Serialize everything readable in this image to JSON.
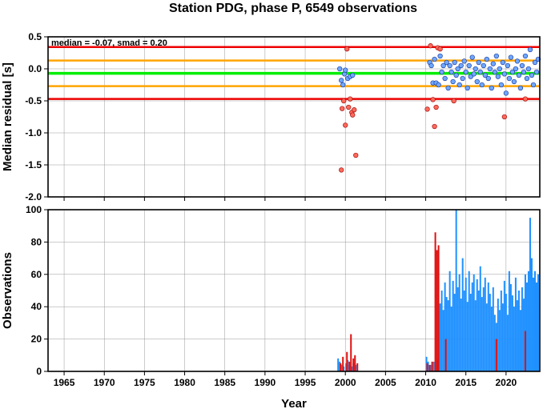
{
  "title": "Station PDG, phase P, 6549 observations",
  "annotation": "median = -0.07, smad = 0.20",
  "xlabel": "Year",
  "colors": {
    "median_line": "#00ee00",
    "one_smad": "#ffa500",
    "two_smad": "#ee0000",
    "good_point_fill": "#6fa8ff",
    "good_point_edge": "#1f3f9f",
    "outlier_fill": "#ff6a5a",
    "outlier_edge": "#a01010",
    "good_bar": "#1e90ff",
    "outlier_bar": "#e01010",
    "grid": "#999999"
  },
  "chart_data": [
    {
      "type": "scatter",
      "ylabel": "Median residual [s]",
      "xlim": [
        1963,
        2024.2
      ],
      "ylim": [
        -2.0,
        0.5
      ],
      "x_ticks": [
        1965,
        1970,
        1975,
        1980,
        1985,
        1990,
        1995,
        2000,
        2005,
        2010,
        2015,
        2020
      ],
      "y_ticks": [
        0.5,
        0.0,
        -0.5,
        -1.0,
        -1.5,
        -2.0
      ],
      "y_tick_labels": [
        "0.5",
        "0.0",
        "-0.5",
        "-1.0",
        "-1.5",
        "-2.0"
      ],
      "grid": true,
      "reference_lines": [
        {
          "name": "median",
          "y": -0.07
        },
        {
          "name": "+1 smad",
          "y": 0.13
        },
        {
          "name": "-1 smad",
          "y": -0.27
        },
        {
          "name": "+2 smad",
          "y": 0.34
        },
        {
          "name": "-2 smad",
          "y": -0.47
        }
      ],
      "series": [
        {
          "kind": "within_limits",
          "points": [
            [
              1999.3,
              0.0
            ],
            [
              1999.5,
              -0.18
            ],
            [
              1999.7,
              -0.25
            ],
            [
              1999.9,
              -0.08
            ],
            [
              2000.0,
              -0.02
            ],
            [
              2000.3,
              -0.15
            ],
            [
              2000.6,
              -0.12
            ],
            [
              2000.9,
              -0.1
            ],
            [
              2010.5,
              0.1
            ],
            [
              2010.7,
              0.05
            ],
            [
              2010.9,
              -0.22
            ],
            [
              2011.1,
              0.15
            ],
            [
              2011.3,
              -0.22
            ],
            [
              2011.6,
              -0.25
            ],
            [
              2011.8,
              0.2
            ],
            [
              2012.0,
              -0.05
            ],
            [
              2012.2,
              0.05
            ],
            [
              2012.4,
              -0.15
            ],
            [
              2012.6,
              0.1
            ],
            [
              2012.8,
              -0.3
            ],
            [
              2013.0,
              0.05
            ],
            [
              2013.2,
              -0.05
            ],
            [
              2013.4,
              -0.2
            ],
            [
              2013.6,
              0.1
            ],
            [
              2013.8,
              -0.1
            ],
            [
              2014.0,
              0.0
            ],
            [
              2014.2,
              -0.25
            ],
            [
              2014.4,
              0.05
            ],
            [
              2014.6,
              -0.15
            ],
            [
              2014.8,
              0.12
            ],
            [
              2015.0,
              -0.05
            ],
            [
              2015.2,
              -0.3
            ],
            [
              2015.4,
              0.05
            ],
            [
              2015.6,
              -0.12
            ],
            [
              2015.8,
              0.18
            ],
            [
              2016.0,
              -0.08
            ],
            [
              2016.2,
              0.0
            ],
            [
              2016.4,
              -0.2
            ],
            [
              2016.6,
              0.1
            ],
            [
              2016.8,
              -0.05
            ],
            [
              2017.0,
              -0.25
            ],
            [
              2017.2,
              0.05
            ],
            [
              2017.4,
              -0.1
            ],
            [
              2017.6,
              0.15
            ],
            [
              2017.8,
              -0.15
            ],
            [
              2018.0,
              0.0
            ],
            [
              2018.2,
              -0.3
            ],
            [
              2018.4,
              0.08
            ],
            [
              2018.6,
              -0.05
            ],
            [
              2018.8,
              0.2
            ],
            [
              2019.0,
              -0.12
            ],
            [
              2019.2,
              0.0
            ],
            [
              2019.4,
              -0.25
            ],
            [
              2019.6,
              0.1
            ],
            [
              2019.8,
              -0.08
            ],
            [
              2020.0,
              -0.38
            ],
            [
              2020.2,
              0.05
            ],
            [
              2020.4,
              -0.15
            ],
            [
              2020.6,
              0.18
            ],
            [
              2020.8,
              -0.05
            ],
            [
              2021.0,
              -0.2
            ],
            [
              2021.2,
              0.0
            ],
            [
              2021.4,
              0.12
            ],
            [
              2021.6,
              -0.1
            ],
            [
              2021.8,
              -0.3
            ],
            [
              2022.0,
              0.05
            ],
            [
              2022.2,
              -0.05
            ],
            [
              2022.4,
              0.2
            ],
            [
              2022.6,
              -0.15
            ],
            [
              2022.8,
              0.0
            ],
            [
              2023.0,
              0.3
            ],
            [
              2023.2,
              -0.1
            ],
            [
              2023.4,
              -0.25
            ],
            [
              2023.6,
              0.1
            ],
            [
              2023.8,
              -0.05
            ],
            [
              2024.0,
              0.15
            ]
          ]
        },
        {
          "kind": "outlier",
          "points": [
            [
              1999.5,
              -1.58
            ],
            [
              1999.6,
              -0.62
            ],
            [
              1999.8,
              -0.5
            ],
            [
              2000.0,
              -0.88
            ],
            [
              2000.2,
              0.31
            ],
            [
              2000.4,
              -0.6
            ],
            [
              2000.6,
              -0.47
            ],
            [
              2000.8,
              -0.68
            ],
            [
              2000.9,
              -0.72
            ],
            [
              2001.1,
              -0.64
            ],
            [
              2001.3,
              -1.35
            ],
            [
              2010.2,
              -0.63
            ],
            [
              2010.6,
              0.36
            ],
            [
              2010.9,
              -0.48
            ],
            [
              2011.1,
              -0.9
            ],
            [
              2011.3,
              -0.6
            ],
            [
              2011.5,
              0.33
            ],
            [
              2011.8,
              0.31
            ],
            [
              2013.5,
              -0.5
            ],
            [
              2019.8,
              -0.75
            ],
            [
              2022.4,
              -0.47
            ]
          ]
        }
      ]
    },
    {
      "type": "bar",
      "ylabel": "Observations",
      "xlim": [
        1963,
        2024.2
      ],
      "ylim": [
        0,
        100
      ],
      "x_ticks": [
        1965,
        1970,
        1975,
        1980,
        1985,
        1990,
        1995,
        2000,
        2005,
        2010,
        2015,
        2020
      ],
      "x_tick_labels": [
        "1965",
        "1970",
        "1975",
        "1980",
        "1985",
        "1990",
        "1995",
        "2000",
        "2005",
        "2010",
        "2015",
        "2020"
      ],
      "y_ticks": [
        0,
        20,
        40,
        60,
        80,
        100
      ],
      "y_tick_labels": [
        "0",
        "20",
        "40",
        "60",
        "80",
        "100"
      ],
      "grid": true,
      "series": [
        {
          "kind": "within_limits",
          "points": [
            [
              1999.1,
              8
            ],
            [
              1999.3,
              6
            ],
            [
              1999.5,
              4
            ],
            [
              1999.8,
              3
            ],
            [
              2000.1,
              5
            ],
            [
              2000.3,
              7
            ],
            [
              2000.5,
              4
            ],
            [
              2000.8,
              3
            ],
            [
              2001.0,
              5
            ],
            [
              2001.3,
              4
            ],
            [
              2010.1,
              9
            ],
            [
              2010.3,
              6
            ],
            [
              2010.6,
              4
            ],
            [
              2011.0,
              6
            ],
            [
              2011.5,
              8
            ],
            [
              2011.8,
              42
            ],
            [
              2012.0,
              50
            ],
            [
              2012.2,
              38
            ],
            [
              2012.4,
              55
            ],
            [
              2012.6,
              46
            ],
            [
              2012.8,
              44
            ],
            [
              2013.0,
              62
            ],
            [
              2013.2,
              40
            ],
            [
              2013.4,
              56
            ],
            [
              2013.6,
              48
            ],
            [
              2013.8,
              100
            ],
            [
              2014.0,
              52
            ],
            [
              2014.2,
              60
            ],
            [
              2014.4,
              45
            ],
            [
              2014.6,
              70
            ],
            [
              2014.8,
              50
            ],
            [
              2015.0,
              58
            ],
            [
              2015.2,
              43
            ],
            [
              2015.4,
              62
            ],
            [
              2015.6,
              48
            ],
            [
              2015.8,
              55
            ],
            [
              2016.0,
              60
            ],
            [
              2016.2,
              44
            ],
            [
              2016.4,
              57
            ],
            [
              2016.6,
              50
            ],
            [
              2016.8,
              65
            ],
            [
              2017.0,
              46
            ],
            [
              2017.2,
              52
            ],
            [
              2017.4,
              58
            ],
            [
              2017.6,
              42
            ],
            [
              2017.8,
              55
            ],
            [
              2018.0,
              48
            ],
            [
              2018.2,
              40
            ],
            [
              2018.4,
              52
            ],
            [
              2018.6,
              35
            ],
            [
              2018.8,
              30
            ],
            [
              2019.0,
              45
            ],
            [
              2019.2,
              38
            ],
            [
              2019.4,
              50
            ],
            [
              2019.6,
              42
            ],
            [
              2019.8,
              56
            ],
            [
              2020.0,
              48
            ],
            [
              2020.2,
              35
            ],
            [
              2020.4,
              62
            ],
            [
              2020.6,
              54
            ],
            [
              2020.8,
              47
            ],
            [
              2021.0,
              40
            ],
            [
              2021.2,
              58
            ],
            [
              2021.4,
              44
            ],
            [
              2021.6,
              50
            ],
            [
              2021.8,
              38
            ],
            [
              2022.0,
              52
            ],
            [
              2022.2,
              45
            ],
            [
              2022.4,
              60
            ],
            [
              2022.6,
              55
            ],
            [
              2022.8,
              62
            ],
            [
              2023.0,
              95
            ],
            [
              2023.2,
              70
            ],
            [
              2023.4,
              58
            ],
            [
              2023.6,
              62
            ],
            [
              2023.8,
              55
            ],
            [
              2024.0,
              60
            ]
          ]
        },
        {
          "kind": "outlier",
          "points": [
            [
              1999.4,
              5
            ],
            [
              1999.7,
              9
            ],
            [
              2000.2,
              12
            ],
            [
              2000.5,
              6
            ],
            [
              2000.7,
              23
            ],
            [
              2001.0,
              8
            ],
            [
              2001.2,
              10
            ],
            [
              2001.5,
              5
            ],
            [
              2010.2,
              5
            ],
            [
              2010.5,
              4
            ],
            [
              2010.8,
              6
            ],
            [
              2011.2,
              86
            ],
            [
              2011.4,
              75
            ],
            [
              2011.6,
              78
            ],
            [
              2012.5,
              20
            ],
            [
              2018.8,
              20
            ],
            [
              2022.4,
              25
            ]
          ]
        }
      ]
    }
  ]
}
